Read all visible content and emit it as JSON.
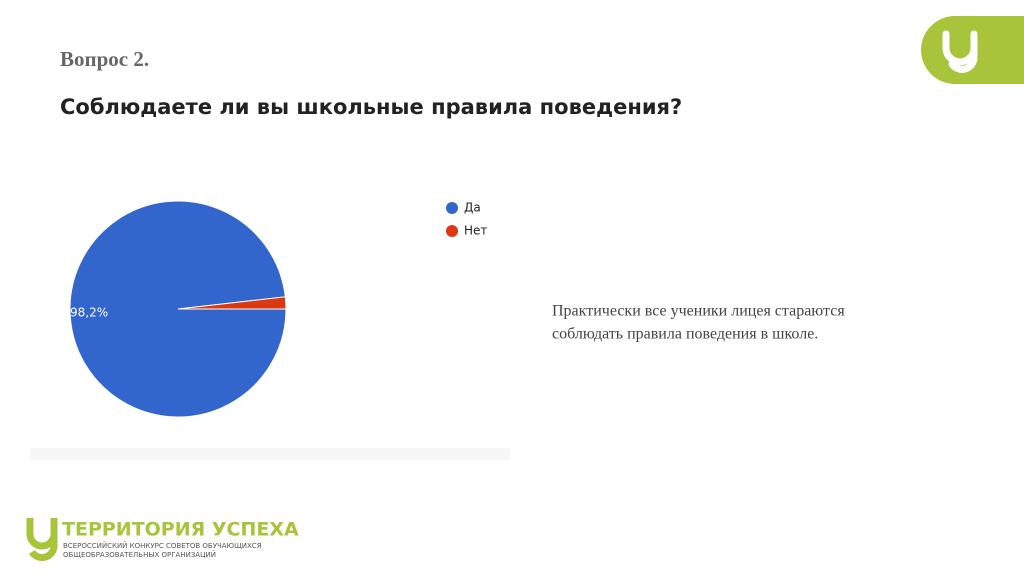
{
  "slide": {
    "question_number": "Вопрос 2.",
    "question": "Соблюдаете ли вы школьные правила поведения?",
    "note": [
      "Практически все ученики лицея стараются",
      "соблюдать правила поведения в школе."
    ],
    "logo": {
      "title": "ТЕРРИТОРИЯ УСПЕХА",
      "subtitle": [
        "ВСЕРОССИЙСКИЙ КОНКУРС СОВЕТОВ ОБУЧАЮЩИХСЯ",
        "ОБЩЕОБРАЗОВАТЕЛЬНЫХ ОРГАНИЗАЦИЙ"
      ]
    }
  },
  "chart_data": {
    "type": "pie",
    "categories": [
      "Да",
      "Нет"
    ],
    "values": [
      98.2,
      1.8
    ],
    "value_labels": [
      "98,2%",
      null
    ],
    "colors": [
      "#3366cc",
      "#dc3912"
    ],
    "legend": "right"
  }
}
